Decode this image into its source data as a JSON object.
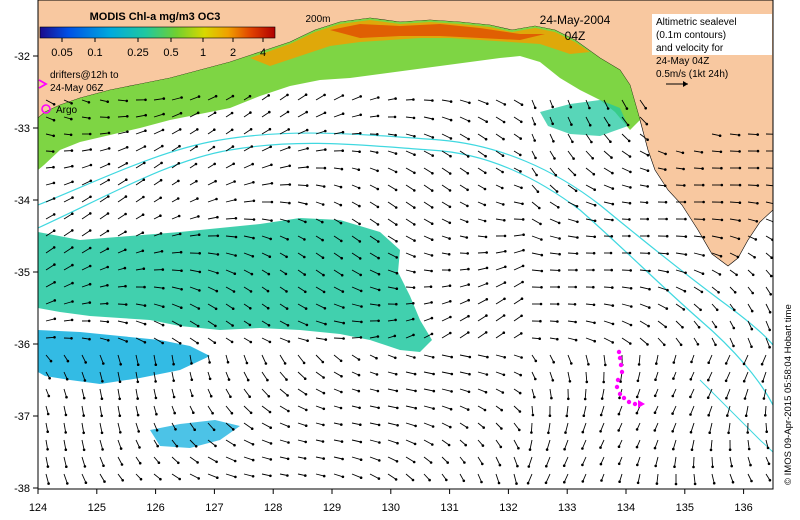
{
  "title": "MODIS Chl-a mg/m3 OC3",
  "contour_label": "200m",
  "date": "24-May-2004",
  "time": "04Z",
  "colorbar": {
    "ticks": [
      "0.05",
      "0.1",
      "0.25",
      "0.5",
      "1",
      "2",
      "4"
    ],
    "colors": [
      "#1a0a8c",
      "#0050e6",
      "#00aadd",
      "#20c8a0",
      "#70d030",
      "#d8d800",
      "#f0a000",
      "#e04000",
      "#b00000"
    ]
  },
  "legend": {
    "drifters": "drifters@12h to\n24-May 06Z",
    "argo": "Argo",
    "drifter_color": "#ff00ff"
  },
  "altimetry_note": [
    "Altimetric sealevel",
    "(0.1m contours)",
    "and velocity for",
    "24-May 04Z",
    "0.5m/s (1kt 24h)"
  ],
  "credit": "© IMOS 09-Apr-2015 05:58:04 Hobart time",
  "axes": {
    "x_ticks": [
      "124",
      "125",
      "126",
      "127",
      "128",
      "129",
      "130",
      "131",
      "132",
      "133",
      "134",
      "135",
      "136"
    ],
    "y_ticks": [
      "-32",
      "-33",
      "-34",
      "-35",
      "-36",
      "-37",
      "-38"
    ]
  },
  "colors": {
    "land": "#f8c8a0",
    "contour": "#40d8e0",
    "vector": "#000000"
  }
}
